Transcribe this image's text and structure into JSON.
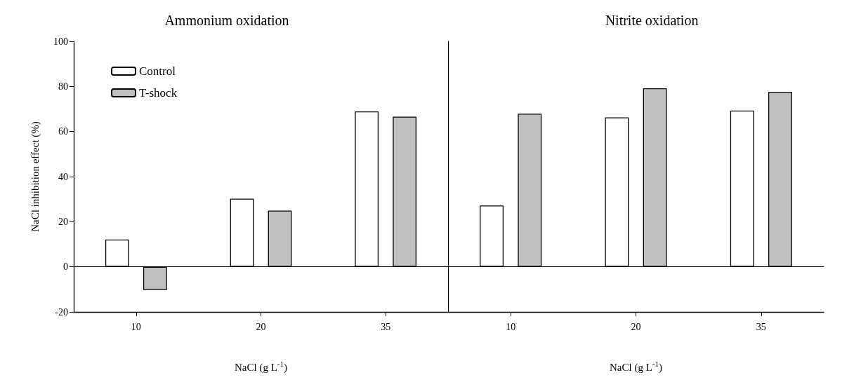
{
  "chart_data": [
    {
      "type": "bar",
      "title": "Ammonium oxidation",
      "xlabel": "NaCl (g L$^{-1}$)",
      "ylabel": "NaCl inhibition effect (%)",
      "categories": [
        "10",
        "20",
        "35"
      ],
      "series": [
        {
          "name": "Control",
          "color": "#ffffff",
          "values": [
            12.1,
            30.2,
            68.9
          ]
        },
        {
          "name": "T-shock",
          "color": "#c0c0c0",
          "values": [
            -10.3,
            24.9,
            66.6
          ]
        }
      ],
      "ylim": [
        -20,
        100
      ],
      "yticks": [
        -20,
        0,
        20,
        40,
        60,
        80,
        100
      ],
      "grid": false,
      "legend": "top left",
      "ref_lines": [
        {
          "axis": "y",
          "value": 0
        }
      ]
    },
    {
      "type": "bar",
      "title": "Nitrite oxidation",
      "xlabel": "NaCl (g L$^{-1}$)",
      "categories": [
        "10",
        "20",
        "35"
      ],
      "series": [
        {
          "color": "#ffffff",
          "values": [
            27.2,
            66.3,
            69.3
          ]
        },
        {
          "color": "#c0c0c0",
          "values": [
            67.9,
            79.2,
            77.6
          ]
        }
      ],
      "ylim": [
        -20,
        100
      ],
      "yticks": [
        -20,
        0,
        20,
        40,
        60,
        80,
        100
      ],
      "grid": false,
      "tick_labels": "x",
      "ref_lines": [
        {
          "axis": "y",
          "value": 0
        }
      ]
    }
  ]
}
